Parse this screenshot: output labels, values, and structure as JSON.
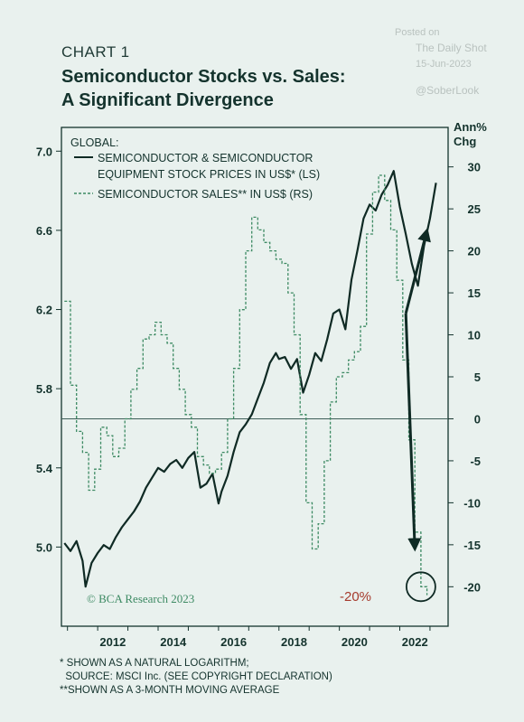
{
  "watermark": {
    "posted": "Posted on",
    "source": "The Daily Shot",
    "date": "15-Jun-2023",
    "handle": "@SoberLook"
  },
  "kicker": "CHART 1",
  "title_line1": "Semiconductor Stocks vs. Sales:",
  "title_line2": "A Significant Divergence",
  "right_axis_label_1": "Ann%",
  "right_axis_label_2": "Chg",
  "legend": {
    "heading": "GLOBAL:",
    "stock_line1": "SEMICONDUCTOR & SEMICONDUCTOR",
    "stock_line2": "EQUIPMENT STOCK PRICES IN US$* (LS)",
    "sales": "SEMICONDUCTOR SALES** IN US$ (RS)"
  },
  "copyright": "© BCA Research 2023",
  "annotation": "-20%",
  "footnotes": [
    "* SHOWN AS A NATURAL LOGARITHM;",
    "  SOURCE: MSCI Inc. (SEE COPYRIGHT DECLARATION)",
    "**SHOWN AS A 3-MONTH MOVING AVERAGE"
  ],
  "colors": {
    "stock": "#0f2a24",
    "sales": "#3d8a63",
    "annotation": "#a53a2c",
    "background": "#e9f1ee"
  },
  "chart_data": {
    "type": "line",
    "xlim": [
      2010.8,
      2023.6
    ],
    "x_ticks": [
      "2012",
      "2014",
      "2016",
      "2018",
      "2020",
      "2022"
    ],
    "y_left": {
      "lim": [
        4.6,
        7.12
      ],
      "ticks": [
        "5.0",
        "5.4",
        "5.8",
        "6.2",
        "6.6",
        "7.0"
      ],
      "scale": "natural log"
    },
    "y_right": {
      "lim": [
        -24.7,
        34.7
      ],
      "ticks": [
        "-20",
        "-15",
        "-10",
        "-5",
        "0",
        "5",
        "10",
        "15",
        "20",
        "25",
        "30"
      ]
    },
    "zero_line": 0,
    "series": [
      {
        "name": "SEMICONDUCTOR & SEMICONDUCTOR EQUIPMENT STOCK PRICES IN US$* (LS)",
        "axis": "left",
        "style": "solid",
        "x": [
          2010.9,
          2011.1,
          2011.3,
          2011.5,
          2011.6,
          2011.8,
          2012.0,
          2012.2,
          2012.4,
          2012.6,
          2012.8,
          2013.0,
          2013.2,
          2013.4,
          2013.6,
          2013.8,
          2014.0,
          2014.2,
          2014.4,
          2014.6,
          2014.8,
          2015.0,
          2015.2,
          2015.4,
          2015.6,
          2015.8,
          2016.0,
          2016.1,
          2016.3,
          2016.5,
          2016.7,
          2016.9,
          2017.1,
          2017.3,
          2017.5,
          2017.7,
          2017.9,
          2018.0,
          2018.2,
          2018.4,
          2018.6,
          2018.8,
          2019.0,
          2019.2,
          2019.4,
          2019.6,
          2019.8,
          2020.0,
          2020.2,
          2020.4,
          2020.6,
          2020.8,
          2021.0,
          2021.2,
          2021.4,
          2021.6,
          2021.8,
          2022.0,
          2022.2,
          2022.4,
          2022.6,
          2022.8,
          2023.0,
          2023.2
        ],
        "y": [
          5.02,
          4.98,
          5.03,
          4.93,
          4.8,
          4.92,
          4.97,
          5.01,
          4.99,
          5.05,
          5.1,
          5.14,
          5.18,
          5.23,
          5.3,
          5.35,
          5.4,
          5.38,
          5.42,
          5.44,
          5.4,
          5.45,
          5.48,
          5.3,
          5.32,
          5.37,
          5.22,
          5.28,
          5.36,
          5.48,
          5.58,
          5.62,
          5.67,
          5.75,
          5.83,
          5.93,
          5.98,
          5.95,
          5.96,
          5.9,
          5.95,
          5.78,
          5.87,
          5.98,
          5.94,
          6.05,
          6.18,
          6.2,
          6.1,
          6.35,
          6.5,
          6.66,
          6.73,
          6.7,
          6.78,
          6.83,
          6.9,
          6.72,
          6.58,
          6.43,
          6.32,
          6.52,
          6.66,
          6.84
        ]
      },
      {
        "name": "SEMICONDUCTOR SALES** IN US$ (RS)",
        "axis": "right",
        "style": "dashed",
        "x": [
          2010.9,
          2011.1,
          2011.3,
          2011.5,
          2011.7,
          2011.9,
          2012.1,
          2012.3,
          2012.5,
          2012.7,
          2012.9,
          2013.1,
          2013.3,
          2013.5,
          2013.7,
          2013.9,
          2014.1,
          2014.3,
          2014.5,
          2014.7,
          2014.9,
          2015.1,
          2015.3,
          2015.5,
          2015.7,
          2015.9,
          2016.1,
          2016.3,
          2016.5,
          2016.7,
          2016.9,
          2017.1,
          2017.3,
          2017.5,
          2017.7,
          2017.9,
          2018.1,
          2018.3,
          2018.5,
          2018.7,
          2018.9,
          2019.1,
          2019.3,
          2019.5,
          2019.7,
          2019.9,
          2020.1,
          2020.3,
          2020.5,
          2020.7,
          2020.9,
          2021.1,
          2021.3,
          2021.5,
          2021.7,
          2021.9,
          2022.1,
          2022.3,
          2022.5,
          2022.7,
          2022.9
        ],
        "y": [
          14.0,
          4.0,
          -1.5,
          -4.0,
          -8.5,
          -6.0,
          -1.0,
          -2.0,
          -4.5,
          -3.5,
          0.0,
          3.5,
          6.0,
          9.5,
          10.0,
          11.5,
          10.0,
          9.0,
          6.0,
          3.5,
          0.5,
          -1.0,
          -4.5,
          -5.5,
          -6.5,
          -6.0,
          -4.0,
          0.0,
          6.0,
          13.0,
          20.0,
          24.0,
          22.5,
          21.0,
          20.0,
          19.0,
          18.5,
          15.0,
          10.0,
          0.5,
          -10.0,
          -15.5,
          -12.5,
          -5.0,
          2.0,
          5.0,
          5.5,
          7.0,
          8.0,
          11.0,
          22.0,
          27.0,
          29.0,
          26.0,
          22.5,
          16.5,
          7.0,
          -2.5,
          -13.5,
          -20.0,
          -21.0
        ]
      }
    ],
    "annotations": [
      {
        "type": "arrow",
        "from": [
          2022.2,
          6.18
        ],
        "to": [
          2022.9,
          6.6
        ],
        "axis": "left"
      },
      {
        "type": "arrow",
        "from": [
          2022.2,
          6.18
        ],
        "to": [
          2022.5,
          -15.5
        ],
        "axis_to": "right"
      },
      {
        "type": "circle",
        "at": [
          2022.7,
          -20.0
        ],
        "axis": "right"
      },
      {
        "type": "label",
        "text": "-20%"
      }
    ]
  }
}
